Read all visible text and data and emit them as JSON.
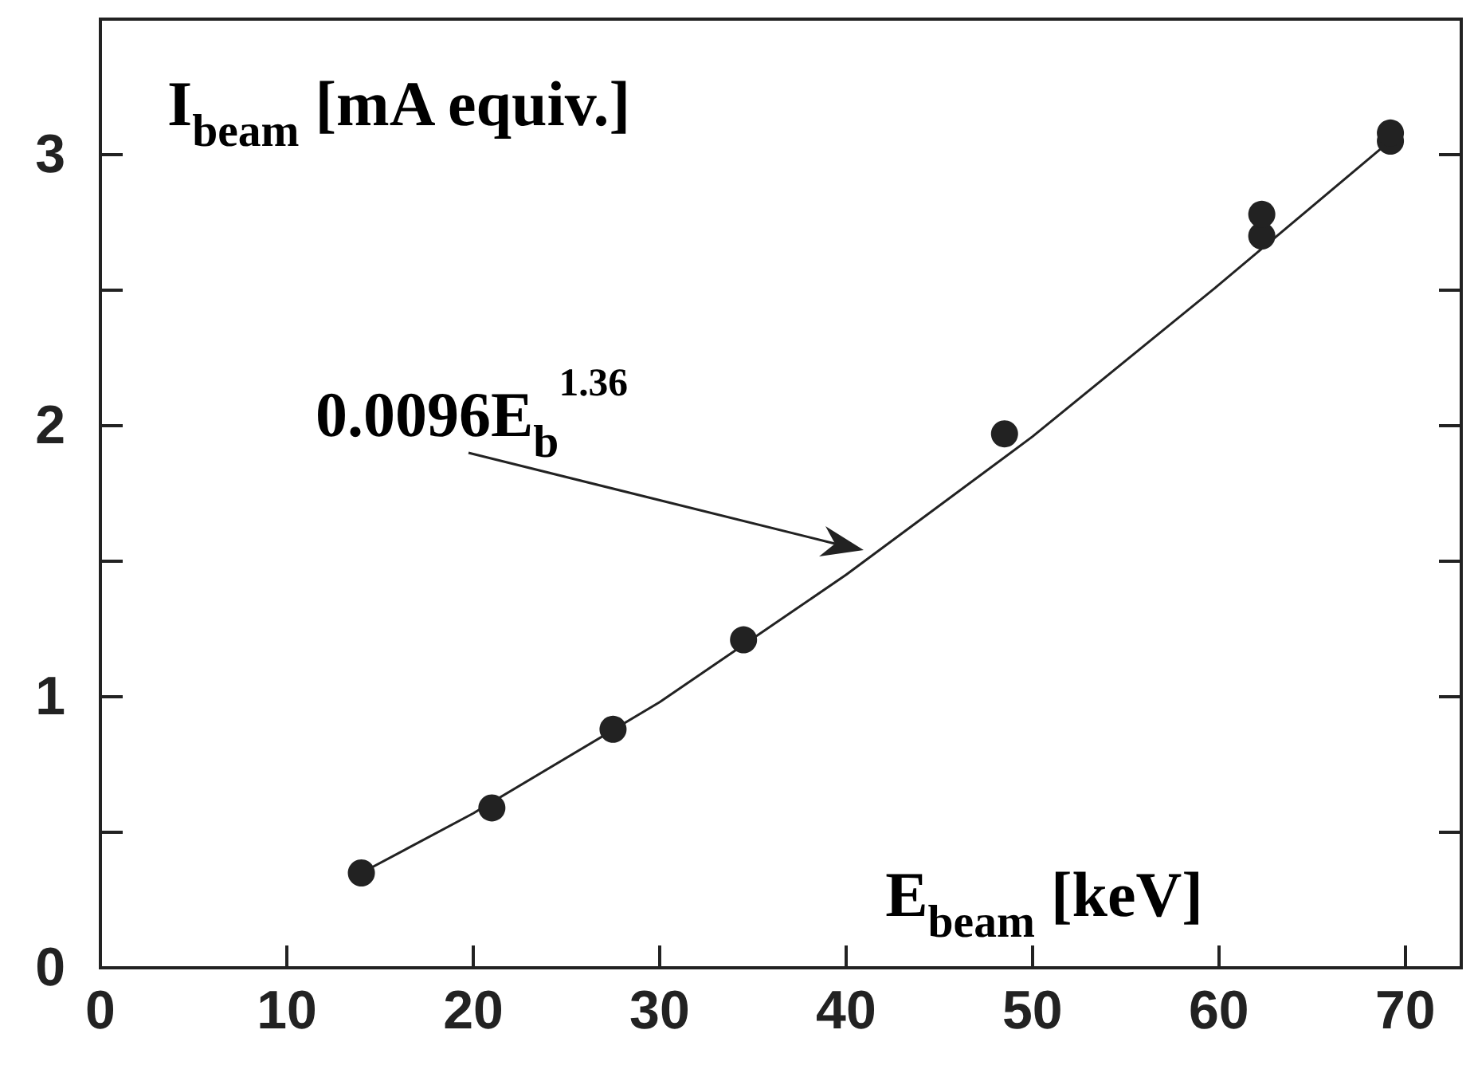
{
  "chart_data": {
    "type": "scatter",
    "xlabel": "E$_{beam}$ [keV]",
    "ylabel": "I$_{beam}$ [mA equiv.]",
    "xlim": [
      0,
      73
    ],
    "xticks": [
      0,
      10,
      20,
      30,
      40,
      50,
      60,
      70
    ],
    "ylim": [
      0,
      3.5
    ],
    "yticks": [
      0,
      {
        "value": 0.5,
        "label": null
      },
      1,
      {
        "value": 1.5,
        "label": null
      },
      2,
      {
        "value": 2.5,
        "label": null
      },
      3
    ],
    "series": [
      {
        "marker": "circle",
        "color": "#222222",
        "x": [
          14,
          21,
          27.5,
          34.5,
          48.5,
          62.3,
          62.3,
          69.2,
          69.2
        ],
        "values": [
          0.35,
          0.59,
          0.88,
          1.21,
          1.97,
          2.7,
          2.78,
          3.05,
          3.08
        ]
      },
      {
        "type": "line",
        "marker": "none",
        "color": "#222222",
        "x": [
          14,
          20,
          30,
          40,
          50,
          60,
          69
        ],
        "values": [
          0.35,
          0.57,
          0.98,
          1.45,
          1.96,
          2.52,
          3.04
        ]
      }
    ],
    "annotations": [
      "0.0096E$_{b}$$^{1.36}$"
    ],
    "line_style": "solid",
    "grid": false
  }
}
